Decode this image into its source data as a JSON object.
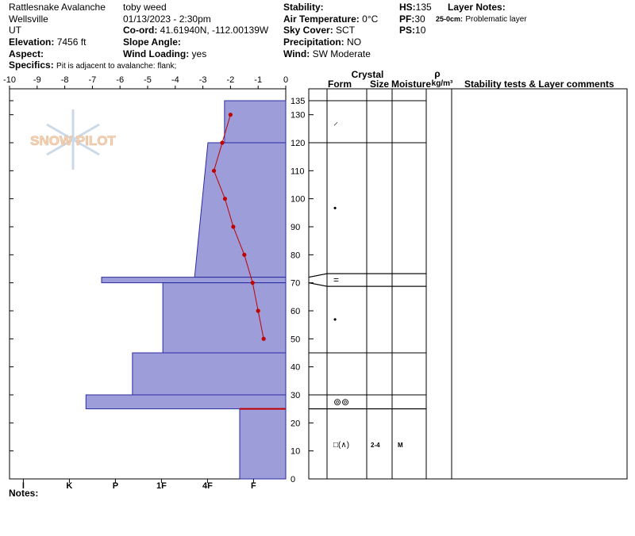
{
  "header": {
    "place": [
      "Rattlesnake Avalanche",
      "Wellsville",
      "UT"
    ],
    "elevation": {
      "label": "Elevation:",
      "value": "7456 ft"
    },
    "aspect": {
      "label": "Aspect:"
    },
    "specifics": {
      "label": "Specifics:",
      "value": "Pit is adjacent to avalanche: flank;"
    },
    "observer": "toby weed",
    "date": "01/13/2023 - 2:30pm",
    "coord": {
      "label": "Co-ord:",
      "value": "41.61940N, -112.00139W"
    },
    "slope_angle": {
      "label": "Slope Angle:"
    },
    "wind_loading": {
      "label": "Wind Loading:",
      "value": "yes"
    },
    "stability": {
      "label": "Stability:"
    },
    "air_temperature": {
      "label": "Air Temperature:",
      "value": "0°C"
    },
    "sky_cover": {
      "label": "Sky Cover:",
      "value": "SCT"
    },
    "precipitation": {
      "label": "Precipitation:",
      "value": "NO"
    },
    "wind": {
      "label": "Wind:",
      "value": "SW Moderate"
    },
    "hs": {
      "label": "HS:",
      "value": "135"
    },
    "pf": {
      "label": "PF:",
      "value": "30"
    },
    "ps": {
      "label": "PS:",
      "value": "10"
    },
    "layer_notes": {
      "label": "Layer Notes:",
      "range": "25-0cm:",
      "note": "Problematic layer"
    },
    "notes": "Notes:",
    "watermark": "SNOW PILOT"
  },
  "chart_data": {
    "type": "snow_profile",
    "xlim": [
      -10,
      0
    ],
    "xticks": [
      -10,
      -9,
      -8,
      -7,
      -6,
      -5,
      -4,
      -3,
      -2,
      -1,
      0
    ],
    "ylim": [
      0,
      135
    ],
    "yticks": [
      0,
      10,
      20,
      30,
      40,
      50,
      60,
      70,
      80,
      90,
      100,
      110,
      120,
      130,
      135
    ],
    "hardness_lim": [
      0,
      6
    ],
    "hardness_ticks": [
      {
        "value": 5.7,
        "label": "I"
      },
      {
        "value": 4.7,
        "label": "K"
      },
      {
        "value": 3.7,
        "label": "P"
      },
      {
        "value": 2.7,
        "label": "1F"
      },
      {
        "value": 1.7,
        "label": "4F"
      },
      {
        "value": 0.7,
        "label": "F"
      }
    ],
    "hardness_color": "#9d9dd9",
    "temperature": {
      "color": "#c00000",
      "depth": [
        130,
        120,
        110,
        100,
        90,
        80,
        70,
        60,
        50
      ],
      "values": [
        -2.0,
        -2.3,
        -2.6,
        -2.2,
        -1.9,
        -1.5,
        -1.2,
        -1.0,
        -0.8
      ]
    },
    "layers": [
      {
        "top": 135,
        "bottom": 120,
        "hardness": 1.33,
        "form": "⸝"
      },
      {
        "top": 120,
        "bottom": 72,
        "hardness_top": 1.69,
        "hardness_bottom": 1.98,
        "form": "•"
      },
      {
        "top": 72,
        "bottom": 70,
        "hardness": 4.0,
        "form": "="
      },
      {
        "top": 70,
        "bottom": 45,
        "hardness": 2.67,
        "form": "•"
      },
      {
        "top": 45,
        "bottom": 30,
        "hardness": 3.33
      },
      {
        "top": 30,
        "bottom": 25,
        "hardness": 4.34,
        "form": "⊚⊚"
      },
      {
        "top": 25,
        "bottom": 0,
        "hardness": 1.0,
        "form": "□(∧)",
        "size": "2-4",
        "moisture": "M"
      }
    ],
    "table_headers": {
      "crystal": "Crystal",
      "form": "Form",
      "size": "Size",
      "moisture": "Moisture",
      "rho": "ρ",
      "rho_unit": "kg/m³",
      "comments": "Stability tests & Layer comments"
    }
  }
}
